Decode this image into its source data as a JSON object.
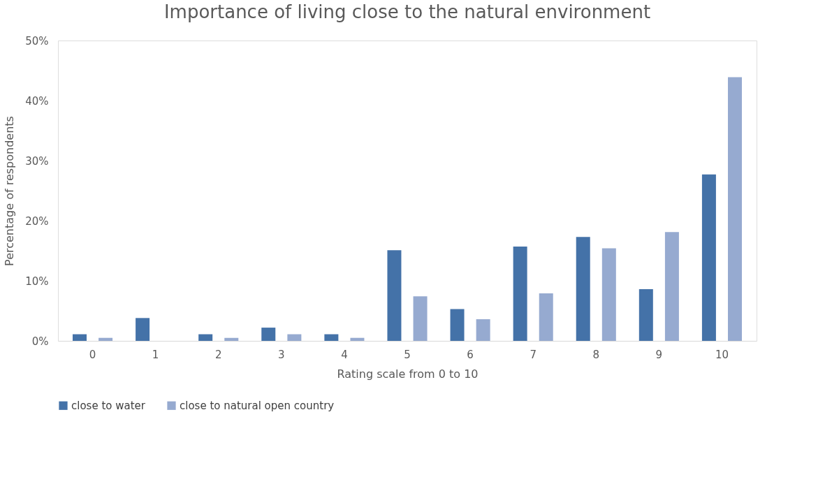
{
  "chart_data": {
    "type": "bar",
    "title": "Importance of living close to the natural environment",
    "xlabel": "Rating scale from 0 to 10",
    "ylabel": "Percentage of respondents",
    "categories": [
      "0",
      "1",
      "2",
      "3",
      "4",
      "5",
      "6",
      "7",
      "8",
      "9",
      "10"
    ],
    "series": [
      {
        "name": "close to water",
        "color": "#4472a8",
        "values": [
          1.1,
          3.8,
          1.1,
          2.2,
          1.1,
          15.1,
          5.3,
          15.7,
          17.3,
          8.6,
          27.7
        ]
      },
      {
        "name": "close to natural open country",
        "color": "#96aad0",
        "values": [
          0.5,
          0,
          0.5,
          1.1,
          0.5,
          7.4,
          3.6,
          7.9,
          15.4,
          18.1,
          43.9
        ]
      }
    ],
    "ylim": [
      0,
      50
    ],
    "yticks": [
      {
        "value": 0,
        "label": "0%"
      },
      {
        "value": 10,
        "label": "10%"
      },
      {
        "value": 20,
        "label": "20%"
      },
      {
        "value": 30,
        "label": "30%"
      },
      {
        "value": 40,
        "label": "40%"
      },
      {
        "value": 50,
        "label": "50%"
      }
    ],
    "grid": false,
    "legend": "bottom"
  }
}
